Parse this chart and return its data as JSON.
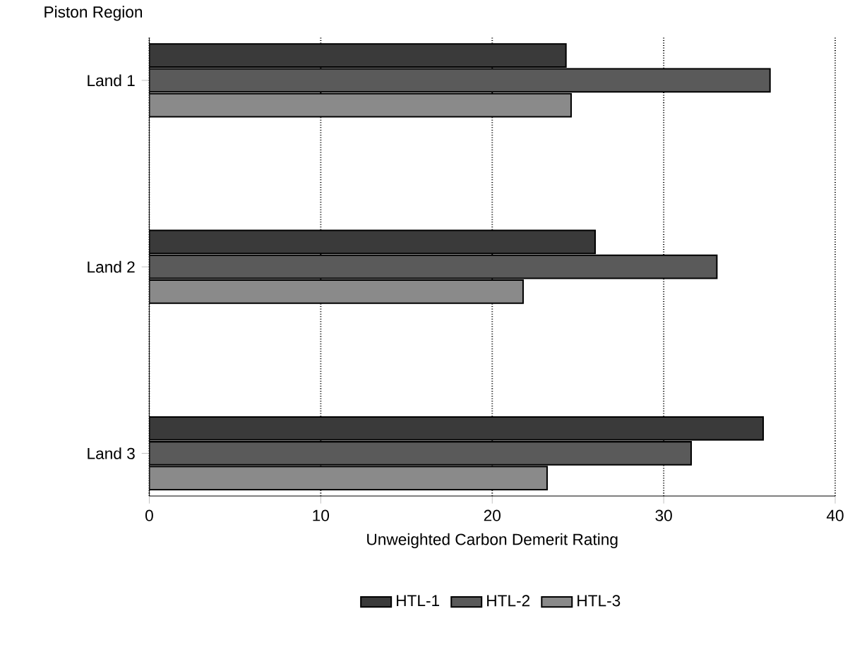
{
  "chart_data": {
    "type": "bar",
    "orientation": "horizontal",
    "ylabel": "Piston Region",
    "xlabel": "Unweighted Carbon Demerit Rating",
    "categories": [
      "Land 1",
      "Land 2",
      "Land 3"
    ],
    "series": [
      {
        "name": "HTL-1",
        "color": "#3a3a3a",
        "values": [
          24.3,
          26.0,
          35.8
        ]
      },
      {
        "name": "HTL-2",
        "color": "#5a5a5a",
        "values": [
          36.2,
          33.1,
          31.6
        ]
      },
      {
        "name": "HTL-3",
        "color": "#8a8a8a",
        "values": [
          24.6,
          21.8,
          23.2
        ]
      }
    ],
    "xlim": [
      0,
      40
    ],
    "xticks": [
      0,
      10,
      20,
      30,
      40
    ],
    "grid": "x",
    "legend": "bottom"
  }
}
